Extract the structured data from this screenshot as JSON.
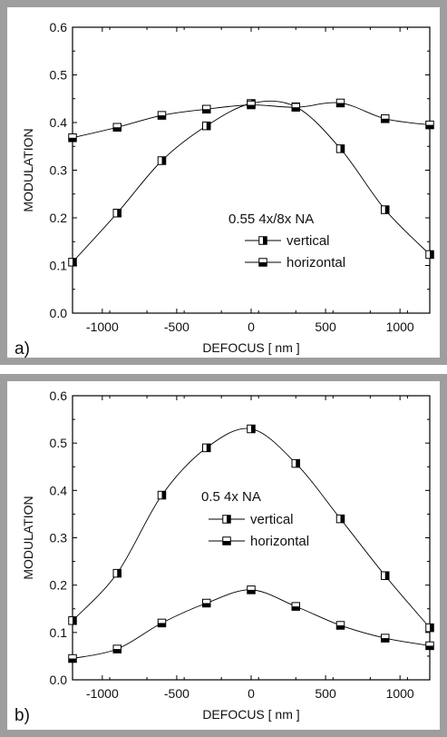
{
  "frame_color": "#9e9e9e",
  "chart_data": [
    {
      "type": "line",
      "panel_label": "a)",
      "xlabel": "DEFOCUS [ nm ]",
      "ylabel": "MODULATION",
      "xlim": [
        -1200,
        1200
      ],
      "ylim": [
        0,
        0.6
      ],
      "xticks": [
        -1000,
        -500,
        0,
        500,
        1000
      ],
      "yticks": [
        0.0,
        0.1,
        0.2,
        0.3,
        0.4,
        0.5,
        0.6
      ],
      "xtick_labels": [
        "-1000",
        "-500",
        "0",
        "500",
        "1000"
      ],
      "ytick_labels": [
        "0.0",
        "0.1",
        "0.2",
        "0.3",
        "0.4",
        "0.5",
        "0.6"
      ],
      "grid": false,
      "legend_title": "0.55 4x/8x NA",
      "series": [
        {
          "name": "vertical",
          "marker": "square-right-filled",
          "x": [
            -1200,
            -900,
            -600,
            -300,
            0,
            300,
            600,
            900,
            1200
          ],
          "y": [
            0.107,
            0.21,
            0.32,
            0.393,
            0.44,
            0.433,
            0.345,
            0.217,
            0.123
          ]
        },
        {
          "name": "horizontal",
          "marker": "square-bottom-filled",
          "x": [
            -1200,
            -900,
            -600,
            -300,
            0,
            300,
            600,
            900,
            1200
          ],
          "y": [
            0.368,
            0.39,
            0.415,
            0.428,
            0.437,
            0.432,
            0.441,
            0.408,
            0.395
          ]
        }
      ]
    },
    {
      "type": "line",
      "panel_label": "b)",
      "xlabel": "DEFOCUS [ nm ]",
      "ylabel": "MODULATION",
      "xlim": [
        -1200,
        1200
      ],
      "ylim": [
        0,
        0.6
      ],
      "xticks": [
        -1000,
        -500,
        0,
        500,
        1000
      ],
      "yticks": [
        0.0,
        0.1,
        0.2,
        0.3,
        0.4,
        0.5,
        0.6
      ],
      "xtick_labels": [
        "-1000",
        "-500",
        "0",
        "500",
        "1000"
      ],
      "ytick_labels": [
        "0.0",
        "0.1",
        "0.2",
        "0.3",
        "0.4",
        "0.5",
        "0.6"
      ],
      "grid": false,
      "legend_title": "0.5 4x NA",
      "series": [
        {
          "name": "vertical",
          "marker": "square-right-filled",
          "x": [
            -1200,
            -900,
            -600,
            -300,
            0,
            300,
            600,
            900,
            1200
          ],
          "y": [
            0.125,
            0.225,
            0.39,
            0.49,
            0.53,
            0.457,
            0.34,
            0.22,
            0.11
          ]
        },
        {
          "name": "horizontal",
          "marker": "square-bottom-filled",
          "x": [
            -1200,
            -900,
            -600,
            -300,
            0,
            300,
            600,
            900,
            1200
          ],
          "y": [
            0.045,
            0.065,
            0.12,
            0.162,
            0.19,
            0.155,
            0.115,
            0.088,
            0.072
          ]
        }
      ]
    }
  ]
}
